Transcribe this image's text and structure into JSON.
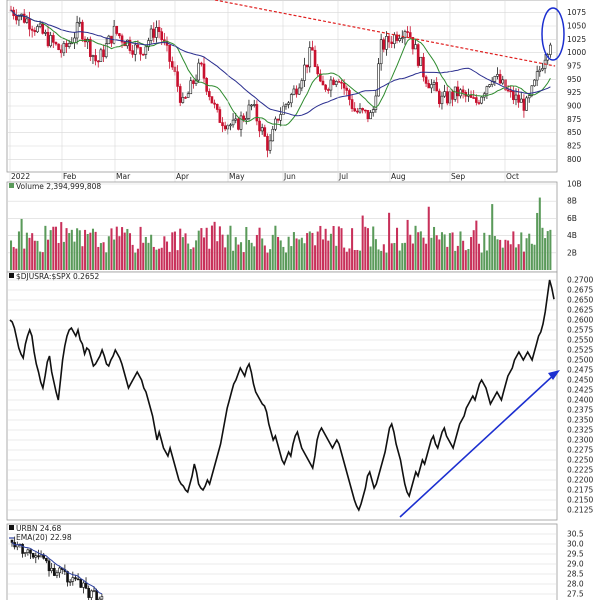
{
  "colors": {
    "up": "#1a1a1a",
    "down": "#c8102e",
    "sma_short": "#2e8b2e",
    "sma_long": "#2b2f8f",
    "trendline": "#e02020",
    "vol_up": "#5a9a5a",
    "vol_down": "#c8305a",
    "ratio_line": "#111111",
    "arrow": "#1c2fd0",
    "ema": "#2b3fa0"
  },
  "month_axis": {
    "labels": [
      "2022",
      "Feb",
      "Mar",
      "Apr",
      "May",
      "Jun",
      "Jul",
      "Aug",
      "Sep",
      "Oct"
    ]
  },
  "chart_data": [
    {
      "type": "candlestick",
      "title": "",
      "y_ticks": [
        800,
        825,
        850,
        875,
        900,
        925,
        950,
        975,
        1000,
        1025,
        1050,
        1075
      ],
      "ylim": [
        780,
        1095
      ],
      "annotations": [
        "downtrend line",
        "circled breakout"
      ],
      "moving_averages": [
        "short SMA (green)",
        "long SMA (blue)"
      ],
      "grid": true
    },
    {
      "type": "bar",
      "label": "Volume 2,394,999,808",
      "y_ticks": [
        "2B",
        "4B",
        "6B",
        "8B",
        "10B"
      ],
      "ylim": [
        0,
        10
      ],
      "unit": "B"
    },
    {
      "type": "line",
      "label": "$DJUSRA:$SPX 0.2652",
      "y_ticks": [
        0.2125,
        0.215,
        0.2175,
        0.22,
        0.2225,
        0.225,
        0.2275,
        0.23,
        0.2325,
        0.235,
        0.2375,
        0.24,
        0.2425,
        0.245,
        0.2475,
        0.25,
        0.2525,
        0.255,
        0.2575,
        0.26,
        0.2625,
        0.265,
        0.2675,
        0.27
      ],
      "ylim": [
        0.2105,
        0.2715
      ],
      "series": [
        {
          "name": "$DJUSRA:$SPX",
          "values": [
            0.26,
            0.2595,
            0.258,
            0.2555,
            0.253,
            0.2515,
            0.2505,
            0.254,
            0.256,
            0.2575,
            0.256,
            0.252,
            0.249,
            0.247,
            0.2445,
            0.243,
            0.246,
            0.2495,
            0.251,
            0.247,
            0.2445,
            0.242,
            0.24,
            0.245,
            0.25,
            0.2535,
            0.256,
            0.2575,
            0.258,
            0.257,
            0.256,
            0.2575,
            0.255,
            0.254,
            0.2515,
            0.253,
            0.2525,
            0.2505,
            0.2485,
            0.249,
            0.25,
            0.251,
            0.2525,
            0.251,
            0.249,
            0.2485,
            0.25,
            0.251,
            0.2525,
            0.2515,
            0.2505,
            0.249,
            0.247,
            0.245,
            0.243,
            0.244,
            0.245,
            0.246,
            0.247,
            0.246,
            0.245,
            0.243,
            0.242,
            0.24,
            0.238,
            0.236,
            0.233,
            0.23,
            0.232,
            0.23,
            0.228,
            0.227,
            0.226,
            0.228,
            0.226,
            0.224,
            0.222,
            0.22,
            0.219,
            0.2185,
            0.2175,
            0.217,
            0.219,
            0.221,
            0.224,
            0.222,
            0.219,
            0.218,
            0.2175,
            0.2185,
            0.22,
            0.219,
            0.221,
            0.223,
            0.225,
            0.227,
            0.229,
            0.232,
            0.235,
            0.238,
            0.24,
            0.242,
            0.244,
            0.245,
            0.2465,
            0.248,
            0.247,
            0.246,
            0.248,
            0.249,
            0.247,
            0.244,
            0.242,
            0.241,
            0.24,
            0.239,
            0.2385,
            0.237,
            0.234,
            0.232,
            0.23,
            0.231,
            0.229,
            0.227,
            0.225,
            0.224,
            0.2255,
            0.227,
            0.226,
            0.229,
            0.231,
            0.232,
            0.23,
            0.228,
            0.227,
            0.226,
            0.225,
            0.224,
            0.223,
            0.226,
            0.23,
            0.232,
            0.233,
            0.232,
            0.231,
            0.23,
            0.229,
            0.228,
            0.229,
            0.23,
            0.229,
            0.227,
            0.225,
            0.223,
            0.221,
            0.219,
            0.217,
            0.215,
            0.2135,
            0.2125,
            0.214,
            0.216,
            0.218,
            0.221,
            0.222,
            0.22,
            0.218,
            0.219,
            0.221,
            0.223,
            0.225,
            0.227,
            0.23,
            0.233,
            0.234,
            0.232,
            0.229,
            0.227,
            0.225,
            0.222,
            0.219,
            0.217,
            0.216,
            0.218,
            0.22,
            0.222,
            0.221,
            0.223,
            0.225,
            0.224,
            0.226,
            0.228,
            0.23,
            0.231,
            0.229,
            0.228,
            0.23,
            0.232,
            0.233,
            0.231,
            0.23,
            0.229,
            0.228,
            0.23,
            0.232,
            0.234,
            0.235,
            0.236,
            0.238,
            0.239,
            0.24,
            0.241,
            0.24,
            0.242,
            0.244,
            0.245,
            0.244,
            0.243,
            0.241,
            0.239,
            0.24,
            0.241,
            0.242,
            0.241,
            0.24,
            0.242,
            0.244,
            0.246,
            0.247,
            0.248,
            0.25,
            0.251,
            0.252,
            0.251,
            0.25,
            0.251,
            0.252,
            0.251,
            0.25,
            0.252,
            0.254,
            0.256,
            0.257,
            0.259,
            0.262,
            0.266,
            0.27,
            0.268,
            0.2652
          ]
        }
      ],
      "annotations": [
        "rising arrow"
      ]
    },
    {
      "type": "candlestick",
      "label": "URBN 24.68",
      "legend": "EMA(20) 22.98",
      "y_ticks": [
        27.5,
        28.0,
        28.5,
        29.0,
        29.5,
        30.0,
        30.5
      ],
      "ylim": [
        27.2,
        30.9
      ]
    }
  ]
}
